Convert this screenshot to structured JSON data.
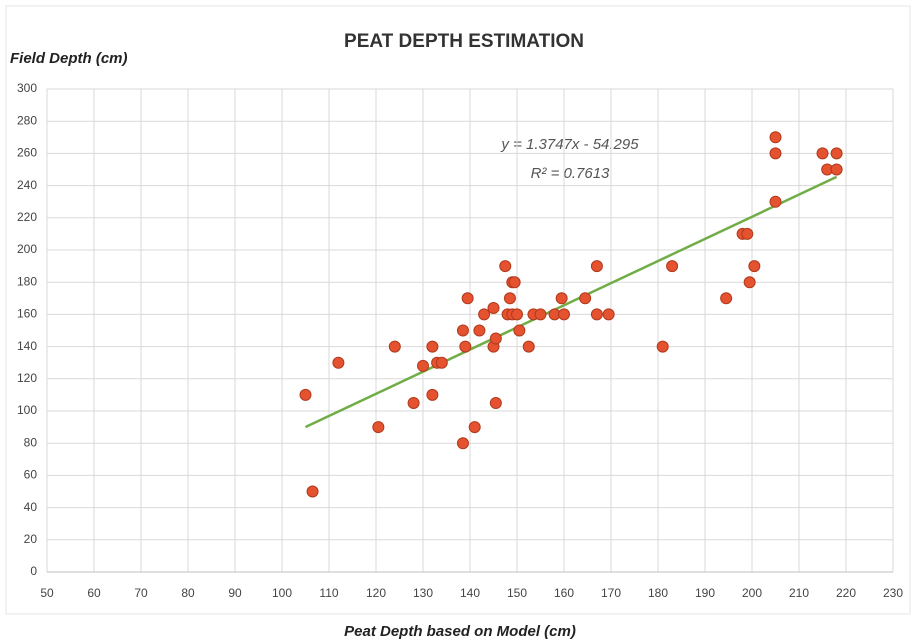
{
  "chart_data": {
    "type": "scatter",
    "title": "PEAT DEPTH ESTIMATION",
    "y_label": "Field Depth (cm)",
    "x_label": "Peat Depth based on Model  (cm)",
    "x": [
      105,
      106.5,
      112,
      120.5,
      124,
      128,
      130,
      132,
      132,
      133,
      134,
      138.5,
      138.5,
      139,
      139.5,
      141,
      142,
      143,
      145,
      145,
      145.5,
      145.5,
      147.5,
      148,
      148.5,
      149,
      149,
      149.5,
      150,
      150.5,
      152.5,
      153.5,
      155,
      158,
      159.5,
      160,
      164.5,
      167,
      167,
      169.5,
      181,
      183,
      194.5,
      198,
      199,
      199.5,
      200.5,
      205,
      205,
      205,
      215,
      216,
      218,
      218
    ],
    "values": [
      110,
      50,
      130,
      90,
      140,
      105,
      128,
      140,
      110,
      130,
      130,
      80,
      150,
      140,
      170,
      90,
      150,
      160,
      164,
      140,
      145,
      105,
      190,
      160,
      170,
      180,
      160,
      180,
      160,
      150,
      140,
      160,
      160,
      160,
      170,
      160,
      170,
      190,
      160,
      160,
      140,
      190,
      170,
      210,
      210,
      180,
      190,
      270,
      260,
      230,
      260,
      250,
      260,
      250
    ],
    "color": "#e4522f",
    "trendline": {
      "slope": 1.3747,
      "intercept": -54.295,
      "x_start": 105,
      "x_end": 218,
      "color": "#70ad47"
    },
    "equation": "y = 1.3747x - 54.295",
    "r_squared": "R² = 0.7613",
    "xlim": [
      50,
      230
    ],
    "xticks": [
      50,
      60,
      70,
      80,
      90,
      100,
      110,
      120,
      130,
      140,
      150,
      160,
      170,
      180,
      190,
      200,
      210,
      220,
      230
    ],
    "ylim": [
      0,
      300
    ],
    "yticks": [
      0,
      20,
      40,
      60,
      80,
      100,
      120,
      140,
      160,
      180,
      200,
      220,
      240,
      260,
      280,
      300
    ],
    "grid": true
  }
}
